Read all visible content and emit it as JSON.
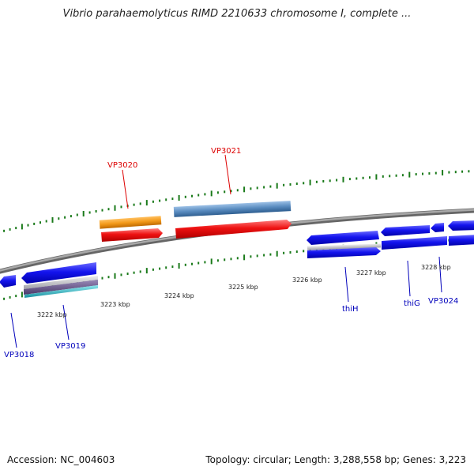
{
  "title": "Vibrio parahaemolyticus RIMD 2210633 chromosome I, complete ...",
  "footer": {
    "accession": "Accession: NC_004603",
    "topology": "Topology: circular; Length: 3,288,558 bp; Genes: 3,223"
  },
  "colors": {
    "backbone": "#8a8a8a",
    "tick": "#1a7a1a",
    "label_red": "#dd0000",
    "label_blue": "#0000bb",
    "gene_blue": "#0a0ae6",
    "gene_red": "#ee1111",
    "gene_orange": "#f39a1a",
    "gene_steel": "#5a8cc0",
    "gene_purple": "#6a5a8a",
    "gene_teal": "#22b8c0",
    "gene_silver": "#c0c0c8"
  },
  "kbp_labels": [
    "3222 kbp",
    "3223 kbp",
    "3224 kbp",
    "3225 kbp",
    "3226 kbp",
    "3227 kbp",
    "3228 kbp"
  ],
  "gene_labels": [
    {
      "name": "VP3020",
      "color": "red"
    },
    {
      "name": "VP3021",
      "color": "red"
    },
    {
      "name": "VP3018",
      "color": "blue"
    },
    {
      "name": "VP3019",
      "color": "blue"
    },
    {
      "name": "thiH",
      "color": "blue"
    },
    {
      "name": "thiG",
      "color": "blue"
    },
    {
      "name": "VP3024",
      "color": "blue"
    }
  ]
}
